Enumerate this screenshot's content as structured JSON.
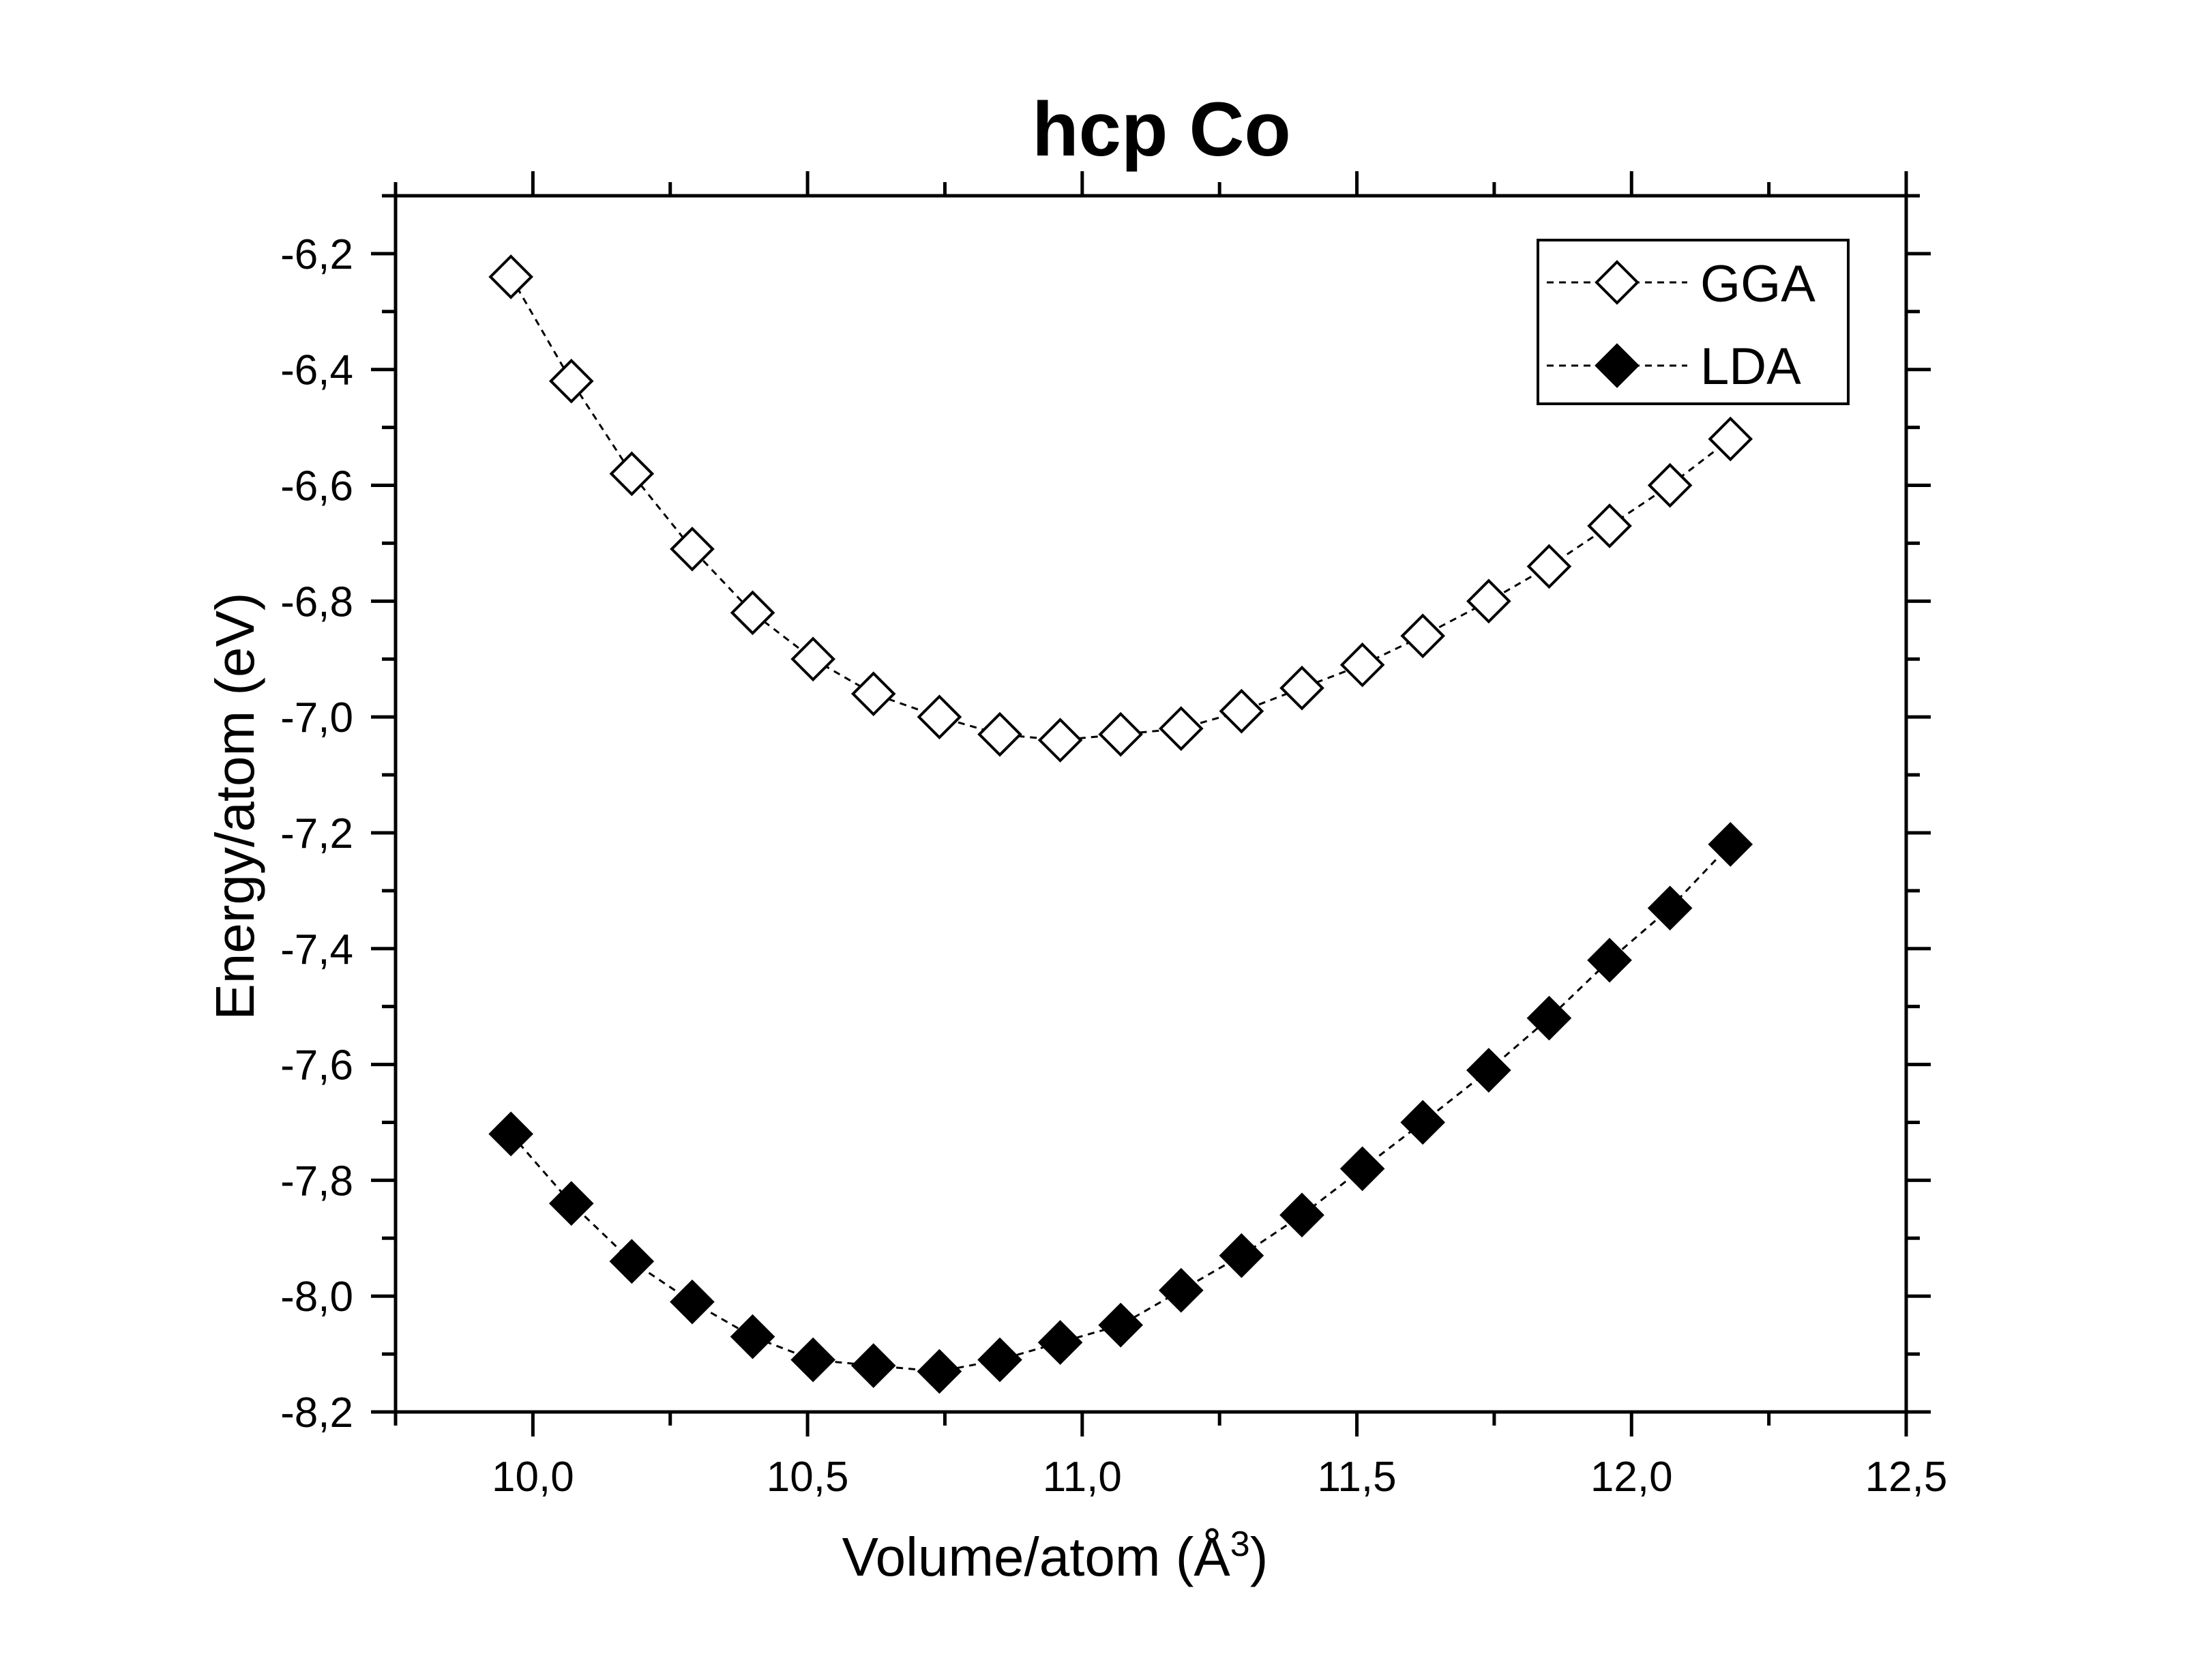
{
  "chart_data": {
    "type": "scatter",
    "title": "hcp Co",
    "xlabel": "Volume/atom (Å",
    "xlabel_sup": "3",
    "xlabel_close": ")",
    "ylabel": "Energy/atom (eV)",
    "xlim": [
      9.75,
      12.5
    ],
    "ylim": [
      -8.2,
      -6.1
    ],
    "x_ticks": [
      "10,0",
      "10,5",
      "11,0",
      "11,5",
      "12,0",
      "12,5"
    ],
    "x_tick_values": [
      10.0,
      10.5,
      11.0,
      11.5,
      12.0,
      12.5
    ],
    "y_ticks": [
      "-6,2",
      "-6,4",
      "-6,6",
      "-6,8",
      "-7,0",
      "-7,2",
      "-7,4",
      "-7,6",
      "-7,8",
      "-8,0",
      "-8,2"
    ],
    "y_tick_values": [
      -6.2,
      -6.4,
      -6.6,
      -6.8,
      -7.0,
      -7.2,
      -7.4,
      -7.6,
      -7.8,
      -8.0,
      -8.2
    ],
    "grid": false,
    "legend_position": "top-right",
    "x": [
      9.96,
      10.07,
      10.18,
      10.29,
      10.4,
      10.51,
      10.62,
      10.74,
      10.85,
      10.96,
      11.07,
      11.18,
      11.29,
      11.4,
      11.51,
      11.62,
      11.74,
      11.85,
      11.96,
      12.07,
      12.18
    ],
    "series": [
      {
        "name": "GGA",
        "marker": "open-diamond",
        "line": "dashed",
        "color": "#000000",
        "values": [
          -6.24,
          -6.42,
          -6.58,
          -6.71,
          -6.82,
          -6.9,
          -6.96,
          -7.0,
          -7.03,
          -7.04,
          -7.03,
          -7.02,
          -6.99,
          -6.95,
          -6.91,
          -6.86,
          -6.8,
          -6.74,
          -6.67,
          -6.6,
          -6.52
        ]
      },
      {
        "name": "LDA",
        "marker": "filled-diamond",
        "line": "dashed",
        "color": "#000000",
        "values": [
          -7.72,
          -7.84,
          -7.94,
          -8.01,
          -8.07,
          -8.11,
          -8.12,
          -8.13,
          -8.11,
          -8.08,
          -8.05,
          -7.99,
          -7.93,
          -7.86,
          -7.78,
          -7.7,
          -7.61,
          -7.52,
          -7.42,
          -7.33,
          -7.22
        ]
      }
    ]
  }
}
